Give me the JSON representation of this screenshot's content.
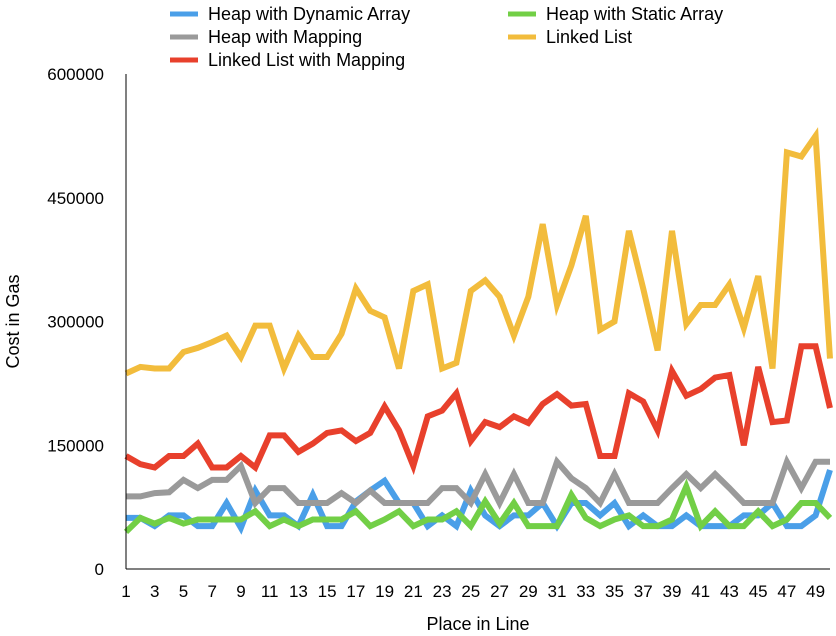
{
  "chart_data": {
    "type": "line",
    "xlabel": "Place in Line",
    "ylabel": "Cost in Gas",
    "ylim": [
      0,
      600000
    ],
    "yticks": [
      0,
      150000,
      300000,
      450000,
      600000
    ],
    "ytick_labels": [
      "0",
      "150000",
      "300000",
      "450000",
      "600000"
    ],
    "xlim": [
      1,
      50
    ],
    "xticks": [
      1,
      3,
      5,
      7,
      9,
      11,
      13,
      15,
      17,
      19,
      21,
      23,
      25,
      27,
      29,
      31,
      33,
      35,
      37,
      39,
      41,
      43,
      45,
      47,
      49
    ],
    "xtick_labels": [
      "1",
      "3",
      "5",
      "7",
      "9",
      "11",
      "13",
      "15",
      "17",
      "19",
      "21",
      "23",
      "25",
      "27",
      "29",
      "31",
      "33",
      "35",
      "37",
      "39",
      "41",
      "43",
      "45",
      "47",
      "49"
    ],
    "legend_position": "top",
    "grid": false,
    "x": [
      1,
      2,
      3,
      4,
      5,
      6,
      7,
      8,
      9,
      10,
      11,
      12,
      13,
      14,
      15,
      16,
      17,
      18,
      19,
      20,
      21,
      22,
      23,
      24,
      25,
      26,
      27,
      28,
      29,
      30,
      31,
      32,
      33,
      34,
      35,
      36,
      37,
      38,
      39,
      40,
      41,
      42,
      43,
      44,
      45,
      46,
      47,
      48,
      49,
      50
    ],
    "series": [
      {
        "name": "Heap with Dynamic Array",
        "color": "#4a9fe8",
        "values": [
          62000,
          62000,
          52000,
          65000,
          65000,
          52000,
          52000,
          80000,
          50000,
          95000,
          65000,
          65000,
          52000,
          90000,
          52000,
          52000,
          82000,
          95000,
          107000,
          80000,
          80000,
          52000,
          65000,
          52000,
          95000,
          65000,
          52000,
          65000,
          65000,
          80000,
          52000,
          80000,
          80000,
          65000,
          80000,
          52000,
          65000,
          52000,
          52000,
          65000,
          52000,
          52000,
          52000,
          65000,
          65000,
          80000,
          52000,
          52000,
          65000,
          120000
        ]
      },
      {
        "name": "Heap with Static Array",
        "color": "#72cf46",
        "values": [
          45000,
          62000,
          55000,
          62000,
          55000,
          60000,
          60000,
          60000,
          60000,
          70000,
          52000,
          60000,
          52000,
          60000,
          60000,
          60000,
          70000,
          52000,
          60000,
          70000,
          52000,
          60000,
          60000,
          70000,
          52000,
          82000,
          55000,
          80000,
          52000,
          52000,
          52000,
          90000,
          62000,
          52000,
          60000,
          65000,
          52000,
          52000,
          60000,
          100000,
          52000,
          70000,
          52000,
          52000,
          70000,
          52000,
          60000,
          80000,
          80000,
          62000
        ]
      },
      {
        "name": "Heap with Mapping",
        "color": "#9a9a9a",
        "values": [
          88000,
          88000,
          92000,
          93000,
          108000,
          98000,
          108000,
          108000,
          125000,
          80000,
          98000,
          98000,
          80000,
          80000,
          80000,
          92000,
          80000,
          95000,
          80000,
          80000,
          80000,
          80000,
          98000,
          98000,
          80000,
          115000,
          80000,
          115000,
          80000,
          80000,
          130000,
          110000,
          98000,
          80000,
          115000,
          80000,
          80000,
          80000,
          98000,
          115000,
          98000,
          115000,
          98000,
          80000,
          80000,
          80000,
          130000,
          98000,
          130000,
          130000
        ]
      },
      {
        "name": "Linked List",
        "color": "#f2bc3c",
        "values": [
          237000,
          245000,
          243000,
          243000,
          263000,
          268000,
          275000,
          283000,
          257000,
          295000,
          295000,
          243000,
          283000,
          257000,
          257000,
          285000,
          340000,
          313000,
          305000,
          243000,
          337000,
          345000,
          243000,
          250000,
          337000,
          350000,
          330000,
          283000,
          330000,
          418000,
          320000,
          368000,
          428000,
          290000,
          300000,
          410000,
          340000,
          265000,
          410000,
          297000,
          320000,
          320000,
          345000,
          292000,
          355000,
          243000,
          505000,
          500000,
          525000,
          255000
        ]
      },
      {
        "name": "Linked List with Mapping",
        "color": "#e8402c",
        "values": [
          137000,
          127000,
          123000,
          137000,
          137000,
          152000,
          123000,
          123000,
          137000,
          123000,
          162000,
          162000,
          142000,
          152000,
          165000,
          168000,
          155000,
          165000,
          197000,
          168000,
          125000,
          185000,
          192000,
          213000,
          155000,
          178000,
          172000,
          185000,
          177000,
          200000,
          212000,
          198000,
          200000,
          137000,
          137000,
          213000,
          203000,
          168000,
          240000,
          210000,
          218000,
          232000,
          235000,
          150000,
          245000,
          178000,
          180000,
          270000,
          270000,
          195000
        ]
      }
    ]
  }
}
